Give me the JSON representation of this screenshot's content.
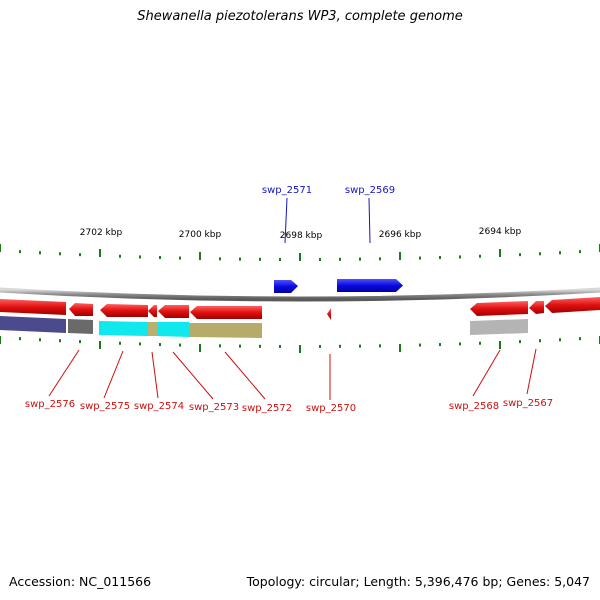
{
  "title": "Shewanella piezotolerans WP3, complete genome",
  "footer": {
    "accession": "Accession: NC_011566",
    "summary": "Topology: circular; Length: 5,396,476 bp; Genes: 5,047"
  },
  "colors": {
    "backbone": "#888888",
    "tick": "#1a7a1a",
    "forward_gene": "#0a0ae0",
    "reverse_gene": "#e01010",
    "forward_label": "#1515c0",
    "reverse_label": "#cc1010",
    "cog_navy": "#4a4a8c",
    "cog_gray": "#6a6a6a",
    "cog_cyan": "#10e8ee",
    "cog_khaki": "#b8b070",
    "cog_olive": "#a8a058",
    "cog_lightgray": "#b4b4b4"
  },
  "kbp_labels": [
    "2702 kbp",
    "2700 kbp",
    "2698 kbp",
    "2696 kbp",
    "2694 kbp"
  ],
  "forward_genes": [
    {
      "label": "swp_2571"
    },
    {
      "label": "swp_2569"
    }
  ],
  "reverse_genes": [
    {
      "label": "swp_2576"
    },
    {
      "label": "swp_2575"
    },
    {
      "label": "swp_2574"
    },
    {
      "label": "swp_2573"
    },
    {
      "label": "swp_2572"
    },
    {
      "label": "swp_2570"
    },
    {
      "label": "swp_2568"
    },
    {
      "label": "swp_2567"
    }
  ]
}
